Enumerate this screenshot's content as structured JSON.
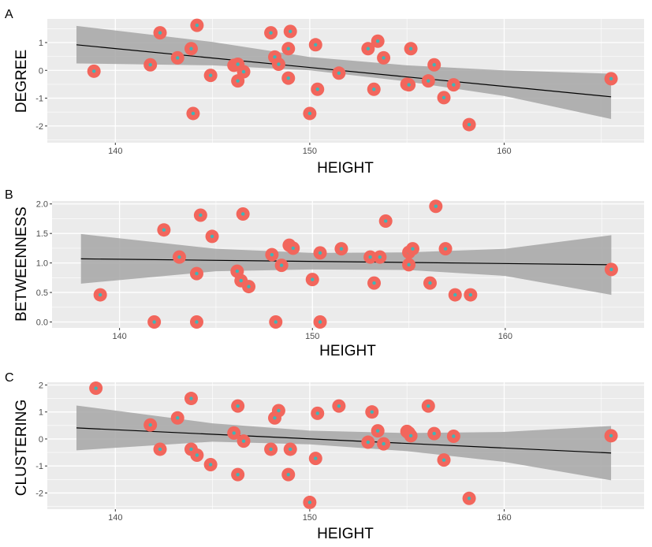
{
  "chart_data": [
    {
      "panel_label": "A",
      "type": "scatter",
      "xlabel": "HEIGHT",
      "ylabel": "DEGREE",
      "xlim": [
        136.5,
        167.2
      ],
      "ylim": [
        -2.6,
        1.85
      ],
      "x_ticks": [
        140,
        150,
        160
      ],
      "y_ticks": [
        -2,
        -1,
        0,
        1
      ],
      "grid": true,
      "fit_line": {
        "x": [
          138,
          165.5
        ],
        "y": [
          0.92,
          -0.95
        ]
      },
      "confidence_band": {
        "x": [
          138,
          145,
          150,
          155,
          160,
          165.5
        ],
        "lower": [
          0.25,
          0.18,
          0.0,
          -0.4,
          -0.92,
          -1.75
        ],
        "upper": [
          1.6,
          1.02,
          0.48,
          0.18,
          0.0,
          -0.12
        ]
      },
      "points": [
        {
          "x": 138.9,
          "y": -0.03
        },
        {
          "x": 141.8,
          "y": 0.2
        },
        {
          "x": 142.3,
          "y": 1.35
        },
        {
          "x": 143.2,
          "y": 0.45
        },
        {
          "x": 143.9,
          "y": 0.78
        },
        {
          "x": 144.0,
          "y": -1.55
        },
        {
          "x": 144.2,
          "y": 1.62
        },
        {
          "x": 144.9,
          "y": -0.18
        },
        {
          "x": 146.1,
          "y": 0.18
        },
        {
          "x": 146.3,
          "y": 0.22
        },
        {
          "x": 146.3,
          "y": -0.38
        },
        {
          "x": 146.6,
          "y": -0.05
        },
        {
          "x": 148.0,
          "y": 1.35
        },
        {
          "x": 148.2,
          "y": 0.48
        },
        {
          "x": 148.4,
          "y": 0.22
        },
        {
          "x": 148.9,
          "y": 0.78
        },
        {
          "x": 148.9,
          "y": -0.28
        },
        {
          "x": 149.0,
          "y": 1.4
        },
        {
          "x": 150.0,
          "y": -1.55
        },
        {
          "x": 150.3,
          "y": 0.92
        },
        {
          "x": 150.4,
          "y": -0.68
        },
        {
          "x": 151.5,
          "y": -0.1
        },
        {
          "x": 153.0,
          "y": 0.78
        },
        {
          "x": 153.3,
          "y": -0.68
        },
        {
          "x": 153.5,
          "y": 1.05
        },
        {
          "x": 153.8,
          "y": 0.45
        },
        {
          "x": 155.0,
          "y": -0.5
        },
        {
          "x": 155.1,
          "y": -0.52
        },
        {
          "x": 155.2,
          "y": 0.78
        },
        {
          "x": 156.1,
          "y": -0.38
        },
        {
          "x": 156.4,
          "y": 0.2
        },
        {
          "x": 156.9,
          "y": -0.98
        },
        {
          "x": 157.4,
          "y": -0.52
        },
        {
          "x": 158.2,
          "y": -1.95
        },
        {
          "x": 165.5,
          "y": -0.3
        }
      ]
    },
    {
      "panel_label": "B",
      "type": "scatter",
      "xlabel": "HEIGHT",
      "ylabel": "BETWEENNESS",
      "xlim": [
        136.5,
        167.2
      ],
      "ylim": [
        -0.1,
        2.05
      ],
      "x_ticks": [
        140,
        150,
        160
      ],
      "y_ticks": [
        0.0,
        0.5,
        1.0,
        1.5,
        2.0
      ],
      "y_tick_labels": [
        "0.0",
        "0.5",
        "1.0",
        "1.5",
        "2.0"
      ],
      "grid": true,
      "fit_line": {
        "x": [
          138,
          165.5
        ],
        "y": [
          1.07,
          0.97
        ]
      },
      "confidence_band": {
        "x": [
          138,
          145,
          150,
          155,
          160,
          165.5
        ],
        "lower": [
          0.65,
          0.86,
          0.89,
          0.88,
          0.78,
          0.46
        ],
        "upper": [
          1.49,
          1.24,
          1.17,
          1.18,
          1.24,
          1.47
        ]
      },
      "points": [
        {
          "x": 139.0,
          "y": 0.46
        },
        {
          "x": 141.8,
          "y": 0.0
        },
        {
          "x": 142.3,
          "y": 1.56
        },
        {
          "x": 143.1,
          "y": 1.1
        },
        {
          "x": 144.0,
          "y": 0.82
        },
        {
          "x": 144.0,
          "y": 0.0
        },
        {
          "x": 144.2,
          "y": 1.81
        },
        {
          "x": 144.8,
          "y": 1.45
        },
        {
          "x": 146.1,
          "y": 0.86
        },
        {
          "x": 146.3,
          "y": 0.7
        },
        {
          "x": 146.4,
          "y": 1.83
        },
        {
          "x": 146.7,
          "y": 0.6
        },
        {
          "x": 147.9,
          "y": 1.14
        },
        {
          "x": 148.1,
          "y": 0.0
        },
        {
          "x": 148.4,
          "y": 0.96
        },
        {
          "x": 148.8,
          "y": 1.3
        },
        {
          "x": 149.0,
          "y": 1.25
        },
        {
          "x": 150.0,
          "y": 0.72
        },
        {
          "x": 150.4,
          "y": 1.17
        },
        {
          "x": 150.4,
          "y": 0.0
        },
        {
          "x": 151.5,
          "y": 1.24
        },
        {
          "x": 153.0,
          "y": 1.1
        },
        {
          "x": 153.2,
          "y": 0.66
        },
        {
          "x": 153.5,
          "y": 1.1
        },
        {
          "x": 153.8,
          "y": 1.71
        },
        {
          "x": 155.0,
          "y": 0.97
        },
        {
          "x": 155.0,
          "y": 1.18
        },
        {
          "x": 155.2,
          "y": 1.24
        },
        {
          "x": 156.1,
          "y": 0.66
        },
        {
          "x": 156.4,
          "y": 1.96
        },
        {
          "x": 156.9,
          "y": 1.24
        },
        {
          "x": 157.4,
          "y": 0.46
        },
        {
          "x": 158.2,
          "y": 0.46
        },
        {
          "x": 165.5,
          "y": 0.89
        }
      ]
    },
    {
      "panel_label": "C",
      "type": "scatter",
      "xlabel": "HEIGHT",
      "ylabel": "CLUSTERING",
      "xlim": [
        136.5,
        167.2
      ],
      "ylim": [
        -2.6,
        2.1
      ],
      "x_ticks": [
        140,
        150,
        160
      ],
      "y_ticks": [
        -2,
        -1,
        0,
        1,
        2
      ],
      "grid": true,
      "fit_line": {
        "x": [
          138,
          165.5
        ],
        "y": [
          0.41,
          -0.52
        ]
      },
      "confidence_band": {
        "x": [
          138,
          145,
          150,
          155,
          160,
          165.5
        ],
        "lower": [
          -0.42,
          -0.1,
          -0.2,
          -0.45,
          -0.85,
          -1.53
        ],
        "upper": [
          1.24,
          0.58,
          0.31,
          0.22,
          0.26,
          0.48
        ]
      },
      "points": [
        {
          "x": 139.0,
          "y": 1.88
        },
        {
          "x": 141.8,
          "y": 0.52
        },
        {
          "x": 142.3,
          "y": -0.38
        },
        {
          "x": 143.2,
          "y": 0.78
        },
        {
          "x": 143.9,
          "y": 1.5
        },
        {
          "x": 143.9,
          "y": -0.38
        },
        {
          "x": 144.2,
          "y": -0.6
        },
        {
          "x": 144.9,
          "y": -0.95
        },
        {
          "x": 146.1,
          "y": 0.22
        },
        {
          "x": 146.3,
          "y": 1.22
        },
        {
          "x": 146.3,
          "y": -1.32
        },
        {
          "x": 146.6,
          "y": -0.08
        },
        {
          "x": 148.0,
          "y": -0.38
        },
        {
          "x": 148.2,
          "y": 0.78
        },
        {
          "x": 148.4,
          "y": 1.05
        },
        {
          "x": 148.9,
          "y": -1.32
        },
        {
          "x": 149.0,
          "y": -0.38
        },
        {
          "x": 150.0,
          "y": -2.35
        },
        {
          "x": 150.3,
          "y": -0.72
        },
        {
          "x": 150.4,
          "y": 0.95
        },
        {
          "x": 151.5,
          "y": 1.22
        },
        {
          "x": 153.0,
          "y": -0.12
        },
        {
          "x": 153.2,
          "y": 1.0
        },
        {
          "x": 153.5,
          "y": 0.3
        },
        {
          "x": 153.8,
          "y": -0.18
        },
        {
          "x": 155.0,
          "y": 0.28
        },
        {
          "x": 155.1,
          "y": 0.22
        },
        {
          "x": 155.2,
          "y": 0.12
        },
        {
          "x": 156.1,
          "y": 1.22
        },
        {
          "x": 156.4,
          "y": 0.2
        },
        {
          "x": 156.9,
          "y": -0.78
        },
        {
          "x": 157.4,
          "y": 0.1
        },
        {
          "x": 158.2,
          "y": -2.2
        },
        {
          "x": 165.5,
          "y": 0.12
        }
      ]
    }
  ],
  "colors": {
    "panel_background": "#ebebeb",
    "grid": "#ffffff",
    "point_outer": "#f2665c",
    "point_inner": "#3fb6b7",
    "confidence_band": "#a6a6a6",
    "fit_line": "#000000",
    "tick_text": "#4d4d4d",
    "title_text": "#000000"
  }
}
